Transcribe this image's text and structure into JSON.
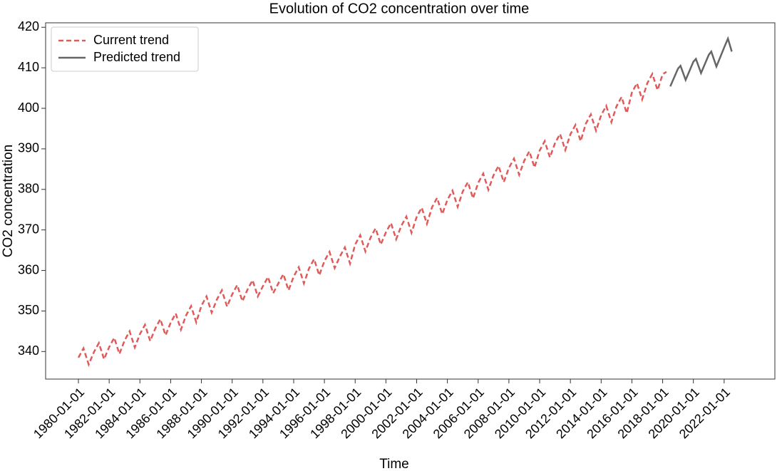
{
  "chart_data": {
    "type": "line",
    "title": "Evolution of CO2 concentration over time",
    "x_label": "Time",
    "y_label": "CO2 concentration",
    "xlim": [
      "1977-11-13",
      "2025-04-20"
    ],
    "ylim": [
      333.2,
      421.1
    ],
    "xticks": [
      "1980-01-01",
      "1982-01-01",
      "1984-01-01",
      "1986-01-01",
      "1988-01-01",
      "1990-01-01",
      "1992-01-01",
      "1994-01-01",
      "1996-01-01",
      "1998-01-01",
      "2000-01-01",
      "2002-01-01",
      "2004-01-01",
      "2006-01-01",
      "2008-01-01",
      "2010-01-01",
      "2012-01-01",
      "2014-01-01",
      "2016-01-01",
      "2018-01-01",
      "2020-01-01",
      "2022-01-01"
    ],
    "yticks": [
      340,
      350,
      360,
      370,
      380,
      390,
      400,
      410,
      420
    ],
    "grid": false,
    "legend": "upper left",
    "series": [
      {
        "name": "Current trend",
        "color": "#e05a5a",
        "dash": true,
        "x": [
          "1980-01-01",
          "1980-05-01",
          "1980-09-01",
          "1981-01-01",
          "1981-05-01",
          "1981-09-01",
          "1982-01-01",
          "1982-05-01",
          "1982-09-01",
          "1983-01-01",
          "1983-05-01",
          "1983-09-01",
          "1984-01-01",
          "1984-05-01",
          "1984-09-01",
          "1985-01-01",
          "1985-05-01",
          "1985-09-01",
          "1986-01-01",
          "1986-05-01",
          "1986-09-01",
          "1987-01-01",
          "1987-05-01",
          "1987-09-01",
          "1988-01-01",
          "1988-05-01",
          "1988-09-01",
          "1989-01-01",
          "1989-05-01",
          "1989-09-01",
          "1990-01-01",
          "1990-05-01",
          "1990-09-01",
          "1991-01-01",
          "1991-05-01",
          "1991-09-01",
          "1992-01-01",
          "1992-05-01",
          "1992-09-01",
          "1993-01-01",
          "1993-05-01",
          "1993-09-01",
          "1994-01-01",
          "1994-05-01",
          "1994-09-01",
          "1995-01-01",
          "1995-05-01",
          "1995-09-01",
          "1996-01-01",
          "1996-05-01",
          "1996-09-01",
          "1997-01-01",
          "1997-05-01",
          "1997-09-01",
          "1998-01-01",
          "1998-05-01",
          "1998-09-01",
          "1999-01-01",
          "1999-05-01",
          "1999-09-01",
          "2000-01-01",
          "2000-05-01",
          "2000-09-01",
          "2001-01-01",
          "2001-05-01",
          "2001-09-01",
          "2002-01-01",
          "2002-05-01",
          "2002-09-01",
          "2003-01-01",
          "2003-05-01",
          "2003-09-01",
          "2004-01-01",
          "2004-05-01",
          "2004-09-01",
          "2005-01-01",
          "2005-05-01",
          "2005-09-01",
          "2006-01-01",
          "2006-05-01",
          "2006-09-01",
          "2007-01-01",
          "2007-05-01",
          "2007-09-01",
          "2008-01-01",
          "2008-05-01",
          "2008-09-01",
          "2009-01-01",
          "2009-05-01",
          "2009-09-01",
          "2010-01-01",
          "2010-05-01",
          "2010-09-01",
          "2011-01-01",
          "2011-05-01",
          "2011-09-01",
          "2012-01-01",
          "2012-05-01",
          "2012-09-01",
          "2013-01-01",
          "2013-05-01",
          "2013-09-01",
          "2014-01-01",
          "2014-05-01",
          "2014-09-01",
          "2015-01-01",
          "2015-05-01",
          "2015-09-01",
          "2016-01-01",
          "2016-05-01",
          "2016-09-01",
          "2017-01-01",
          "2017-05-01",
          "2017-09-01",
          "2018-01-01",
          "2018-04-01"
        ],
        "values": [
          338.5,
          340.8,
          336.8,
          339.8,
          342.1,
          338.1,
          341.1,
          343.4,
          339.4,
          342.7,
          345.0,
          341.0,
          344.3,
          346.6,
          342.6,
          345.7,
          348.0,
          344.0,
          347.1,
          349.4,
          345.4,
          348.9,
          351.2,
          347.2,
          351.3,
          353.6,
          349.6,
          352.8,
          355.1,
          351.1,
          354.1,
          356.4,
          352.4,
          355.3,
          357.6,
          353.6,
          356.1,
          358.4,
          354.4,
          356.8,
          359.1,
          355.1,
          358.5,
          360.8,
          356.8,
          360.5,
          362.8,
          358.8,
          362.3,
          364.6,
          360.6,
          363.4,
          365.7,
          361.7,
          366.4,
          368.7,
          364.7,
          368.1,
          370.4,
          366.4,
          369.4,
          371.7,
          367.7,
          371.0,
          373.3,
          369.3,
          373.2,
          375.5,
          371.5,
          375.6,
          377.9,
          373.9,
          377.4,
          379.7,
          375.7,
          379.5,
          381.8,
          377.8,
          381.6,
          383.9,
          379.9,
          383.5,
          385.8,
          381.8,
          385.3,
          387.6,
          383.6,
          387.1,
          389.4,
          385.4,
          389.6,
          391.9,
          387.9,
          391.4,
          393.7,
          389.7,
          393.6,
          395.9,
          391.9,
          396.2,
          398.5,
          394.5,
          398.3,
          400.6,
          396.6,
          400.5,
          402.8,
          398.8,
          403.9,
          406.2,
          402.2,
          406.2,
          408.5,
          404.5,
          408.4,
          409.0
        ]
      },
      {
        "name": "Predicted trend",
        "color": "#666666",
        "dash": false,
        "x": [
          "2018-07-01",
          "2019-01-01",
          "2019-03-01",
          "2019-07-01",
          "2020-01-01",
          "2020-03-01",
          "2020-07-01",
          "2021-01-01",
          "2021-03-01",
          "2021-07-01",
          "2022-01-01",
          "2022-04-01",
          "2022-07-01"
        ],
        "values": [
          405.4,
          409.8,
          410.5,
          407.0,
          411.5,
          412.2,
          408.7,
          413.2,
          414.0,
          410.3,
          415.0,
          417.2,
          414.0
        ]
      }
    ]
  }
}
